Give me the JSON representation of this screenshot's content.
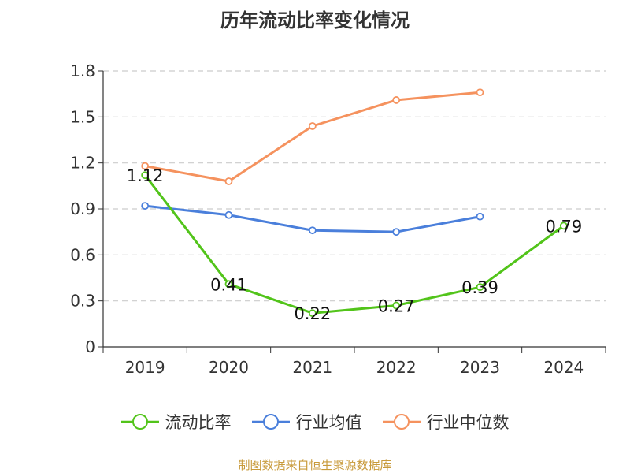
{
  "title": "历年流动比率变化情况",
  "source": "制图数据来自恒生聚源数据库",
  "colors": {
    "current_ratio": "#52c41a",
    "industry_mean": "#4a7fdb",
    "industry_median": "#f5925e",
    "axis": "#333333",
    "grid": "#cccccc"
  },
  "chart_data": {
    "type": "line",
    "title": "历年流动比率变化情况",
    "xlabel": "",
    "ylabel": "",
    "categories": [
      "2019",
      "2020",
      "2021",
      "2022",
      "2023",
      "2024"
    ],
    "ylim": [
      0,
      1.8
    ],
    "yticks": [
      0,
      0.3,
      0.6,
      0.9,
      1.2,
      1.5,
      1.8
    ],
    "ytick_labels": [
      "0",
      "0.3",
      "0.6",
      "0.9",
      "1.2",
      "1.5",
      "1.8"
    ],
    "grid": true,
    "legend_position": "bottom-center",
    "series": [
      {
        "name": "流动比率",
        "color_key": "current_ratio",
        "values": [
          1.12,
          0.41,
          0.22,
          0.27,
          0.39,
          0.79
        ],
        "labels": [
          "1.12",
          "0.41",
          "0.22",
          "0.27",
          "0.39",
          "0.79"
        ]
      },
      {
        "name": "行业均值",
        "color_key": "industry_mean",
        "values": [
          0.92,
          0.86,
          0.76,
          0.75,
          0.85,
          null
        ]
      },
      {
        "name": "行业中位数",
        "color_key": "industry_median",
        "values": [
          1.18,
          1.08,
          1.44,
          1.61,
          1.66,
          null
        ]
      }
    ]
  }
}
